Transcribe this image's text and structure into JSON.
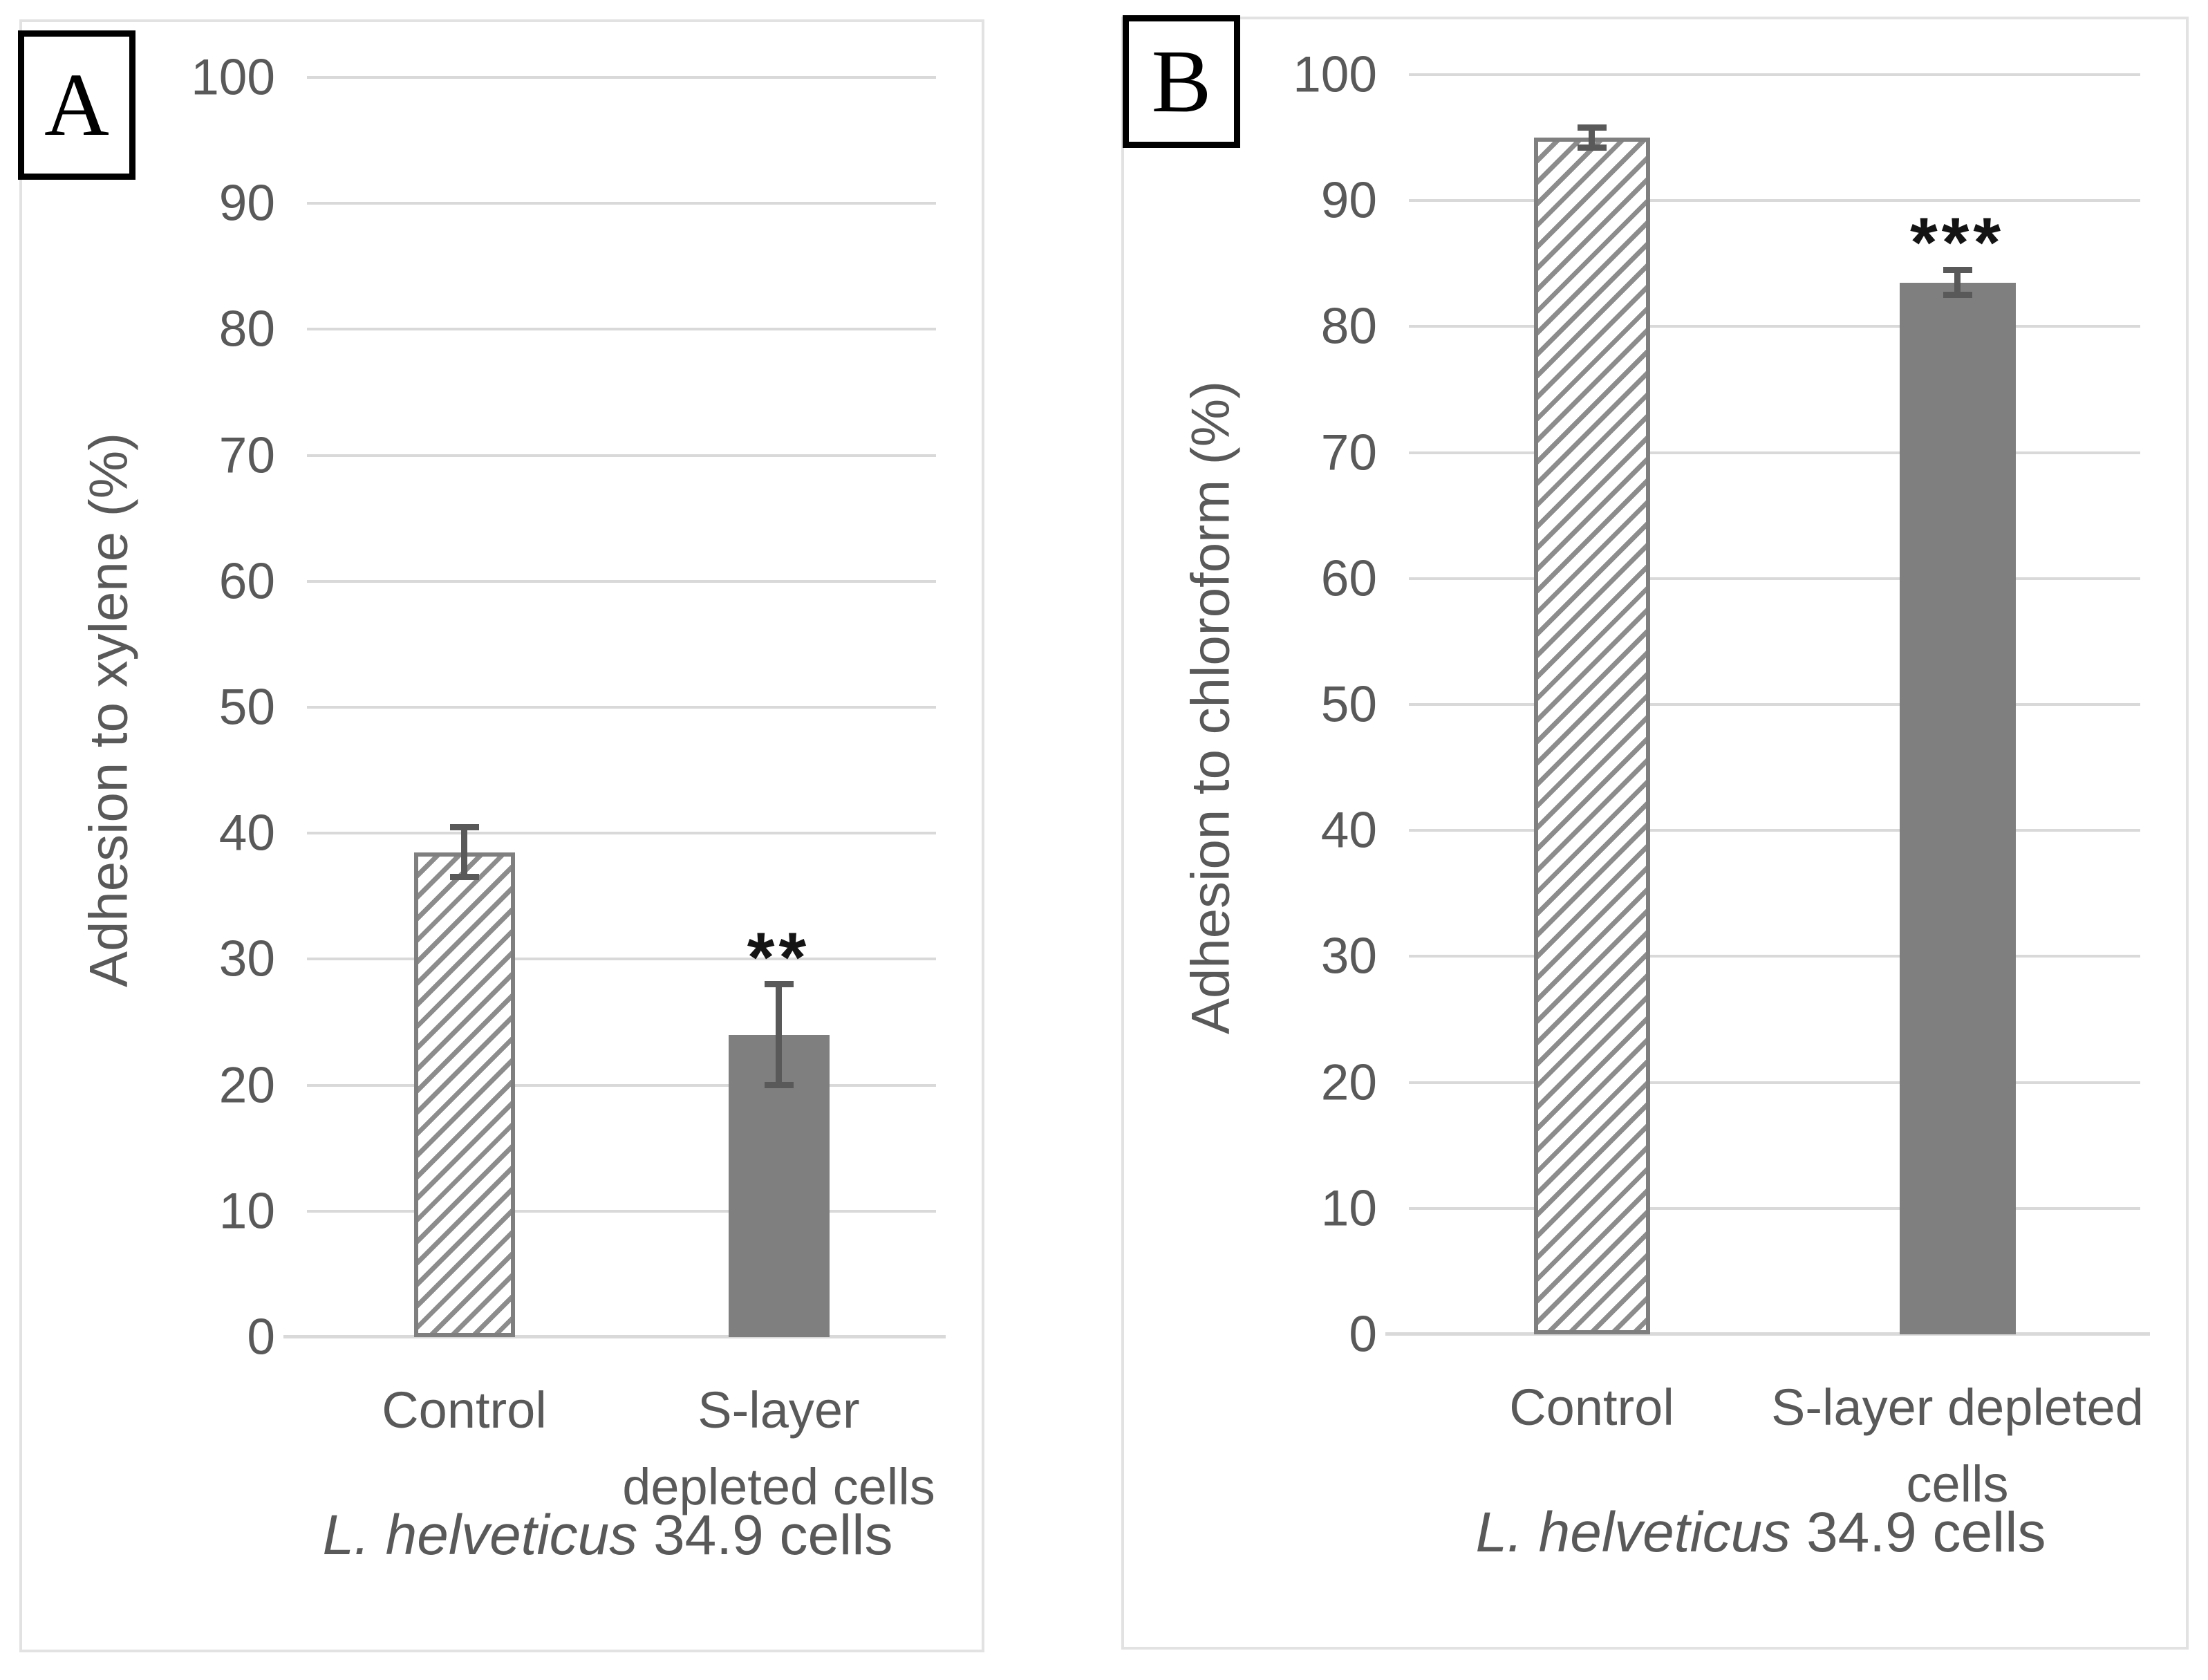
{
  "figure": {
    "panels": [
      {
        "label": "A"
      },
      {
        "label": "B"
      }
    ]
  },
  "chart_data": [
    {
      "type": "bar",
      "panel_label": "A",
      "categories": [
        "Control",
        "S-layer\ndepleted cells"
      ],
      "values": [
        38.5,
        24
      ],
      "error_bars": [
        2,
        4
      ],
      "significance": [
        "",
        "**"
      ],
      "ylabel": "Adhesion to xylene (%)",
      "xlabel_parts": {
        "italic": "L. helveticus",
        "regular": " 34.9 cells"
      },
      "ylim": [
        0,
        100
      ],
      "ytick_step": 10,
      "grid": true,
      "legend": "none",
      "bar_styles": [
        "hatched",
        "solid"
      ]
    },
    {
      "type": "bar",
      "panel_label": "B",
      "categories": [
        "Control",
        "S-layer depleted\ncells"
      ],
      "values": [
        95,
        83.5
      ],
      "error_bars": [
        0.8,
        1
      ],
      "significance": [
        "",
        "***"
      ],
      "ylabel": "Adhesion to chloroform (%)",
      "xlabel_parts": {
        "italic": "L. helveticus",
        "regular": " 34.9 cells"
      },
      "ylim": [
        0,
        100
      ],
      "ytick_step": 10,
      "grid": true,
      "legend": "none",
      "bar_styles": [
        "hatched",
        "solid"
      ]
    }
  ],
  "colors": {
    "axis_text": "#595959",
    "gridline": "#d9d9d9",
    "solid_bar": "#7f7f7f",
    "hatch_stripe": "#8c8c8c",
    "bar_border": "#7f7f7f",
    "error_bar": "#595959",
    "panel_border": "#e2e2e2",
    "annotation": "#141414"
  }
}
